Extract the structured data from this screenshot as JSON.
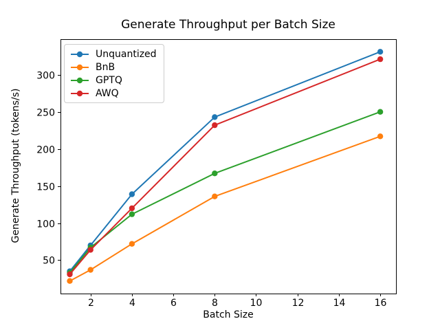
{
  "figure": {
    "background": "#ffffff",
    "text_color": "#000000",
    "axis_color": "#000000"
  },
  "chart_data": {
    "type": "line",
    "title": "Generate Throughput per Batch Size",
    "xlabel": "Batch Size",
    "ylabel": "Generate Throughput (tokens/s)",
    "x": [
      1,
      2,
      4,
      8,
      16
    ],
    "series": [
      {
        "name": "Unquantized",
        "color": "#1f77b4",
        "values": [
          35,
          70,
          139,
          243,
          331
        ]
      },
      {
        "name": "BnB",
        "color": "#ff7f0e",
        "values": [
          22,
          37,
          72,
          136,
          217
        ]
      },
      {
        "name": "GPTQ",
        "color": "#2ca02c",
        "values": [
          33,
          67,
          112,
          167,
          250
        ]
      },
      {
        "name": "AWQ",
        "color": "#d62728",
        "values": [
          31,
          64,
          120,
          232,
          321
        ]
      }
    ],
    "x_ticks": [
      2,
      4,
      6,
      8,
      10,
      12,
      14,
      16
    ],
    "y_ticks": [
      50,
      100,
      150,
      200,
      250,
      300
    ],
    "xlim": [
      0.55,
      16.76
    ],
    "ylim": [
      5,
      348
    ],
    "grid": false,
    "marker": "o",
    "legend_position": "upper left"
  }
}
